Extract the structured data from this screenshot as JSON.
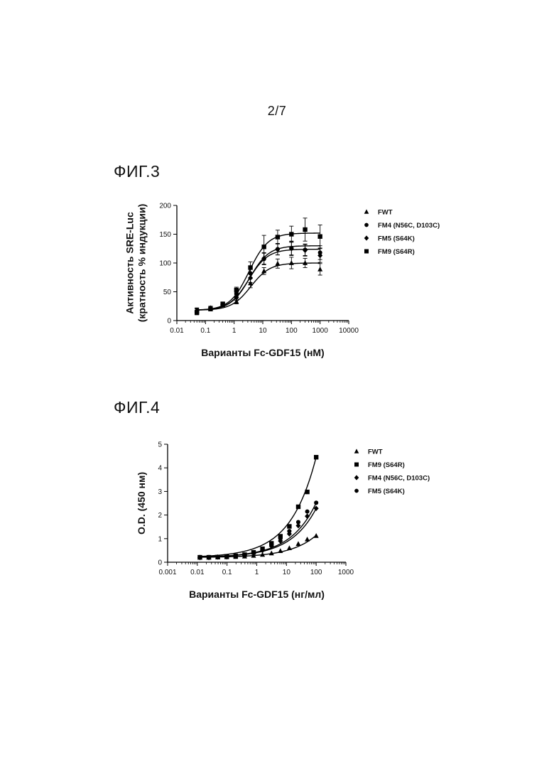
{
  "page": {
    "number": "2/7"
  },
  "figures": [
    {
      "title": "ФИГ.3"
    },
    {
      "title": "ФИГ.4"
    }
  ],
  "chart_data": [
    {
      "type": "scatter",
      "title": "",
      "xlabel": "Варианты Fc-GDF15 (нМ)",
      "ylabel_lines": [
        "Активность SRE-Luc",
        "(кратность % индукции)"
      ],
      "xscale": "log",
      "xlim": [
        0.01,
        10000
      ],
      "ylim": [
        0,
        200
      ],
      "xticks": [
        "0.01",
        "0.1",
        "1",
        "10",
        "100",
        "1000",
        "10000"
      ],
      "yticks": [
        "0",
        "50",
        "100",
        "150",
        "200"
      ],
      "legend_position": "right",
      "series": [
        {
          "name": "FWT",
          "marker": "triangle",
          "x": [
            0.05,
            0.15,
            0.4,
            1.2,
            3.7,
            11,
            33,
            100,
            300,
            1000
          ],
          "y": [
            18,
            22,
            27,
            33,
            65,
            86,
            99,
            100,
            100,
            89
          ],
          "err": [
            4,
            3,
            3,
            4,
            8,
            6,
            8,
            10,
            8,
            10
          ],
          "fit": {
            "bottom": 18,
            "top": 100,
            "ec50": 3.8,
            "hill": 1.3
          }
        },
        {
          "name": "FM4 (N56C, D103C)",
          "marker": "circle",
          "x": [
            0.05,
            0.15,
            0.4,
            1.2,
            3.7,
            11,
            33,
            100,
            300,
            1000
          ],
          "y": [
            16,
            20,
            27,
            47,
            82,
            107,
            124,
            125,
            123,
            118
          ],
          "err": [
            4,
            3,
            3,
            5,
            8,
            10,
            10,
            12,
            10,
            12
          ],
          "fit": {
            "bottom": 18,
            "top": 124,
            "ec50": 3.2,
            "hill": 1.3
          }
        },
        {
          "name": "FM5 (S64K)",
          "marker": "diamond",
          "x": [
            0.05,
            0.15,
            0.4,
            1.2,
            3.7,
            11,
            33,
            100,
            300,
            1000
          ],
          "y": [
            17,
            21,
            28,
            40,
            74,
            108,
            124,
            126,
            122,
            113
          ],
          "err": [
            4,
            3,
            3,
            5,
            8,
            10,
            10,
            12,
            10,
            12
          ],
          "fit": {
            "bottom": 18,
            "top": 130,
            "ec50": 3.5,
            "hill": 1.3
          }
        },
        {
          "name": "FM9 (S64R)",
          "marker": "square",
          "x": [
            0.05,
            0.15,
            0.4,
            1.2,
            3.7,
            11,
            33,
            100,
            300,
            1000
          ],
          "y": [
            14,
            20,
            29,
            53,
            92,
            128,
            145,
            150,
            158,
            146
          ],
          "err": [
            4,
            3,
            3,
            5,
            10,
            20,
            12,
            14,
            20,
            20
          ],
          "fit": {
            "bottom": 18,
            "top": 152,
            "ec50": 3.3,
            "hill": 1.3
          }
        }
      ]
    },
    {
      "type": "scatter",
      "title": "",
      "xlabel": "Варианты Fc-GDF15 (нг/мл)",
      "ylabel_lines": [
        "O.D. (450 нм)"
      ],
      "xscale": "log",
      "xlim": [
        0.001,
        1000
      ],
      "ylim": [
        0,
        5
      ],
      "xticks": [
        "0.001",
        "0.01",
        "0.1",
        "1",
        "10",
        "100",
        "1000"
      ],
      "yticks": [
        "0",
        "1",
        "2",
        "3",
        "4",
        "5"
      ],
      "legend_position": "right",
      "series": [
        {
          "name": "FWT",
          "marker": "triangle",
          "x": [
            0.0122,
            0.0244,
            0.0488,
            0.0977,
            0.195,
            0.39,
            0.78,
            1.56,
            3.13,
            6.25,
            12.5,
            25,
            50,
            100
          ],
          "y": [
            0.2,
            0.2,
            0.21,
            0.22,
            0.23,
            0.25,
            0.28,
            0.32,
            0.38,
            0.48,
            0.6,
            0.78,
            0.97,
            1.12
          ],
          "fit": {
            "a": 0.2,
            "b": 0.094
          }
        },
        {
          "name": "FM9 (S64R)",
          "marker": "square",
          "x": [
            0.0122,
            0.0244,
            0.0488,
            0.0977,
            0.195,
            0.39,
            0.78,
            1.56,
            3.13,
            6.25,
            12.5,
            25,
            50,
            100
          ],
          "y": [
            0.21,
            0.21,
            0.22,
            0.24,
            0.27,
            0.32,
            0.42,
            0.57,
            0.8,
            1.1,
            1.52,
            2.35,
            2.98,
            4.45
          ],
          "fit": {
            "a": 0.2,
            "b": 0.426
          }
        },
        {
          "name": "FM4 (N56C, D103C)",
          "marker": "diamond",
          "x": [
            0.0122,
            0.0244,
            0.0488,
            0.0977,
            0.195,
            0.39,
            0.78,
            1.56,
            3.13,
            6.25,
            12.5,
            25,
            50,
            100
          ],
          "y": [
            0.2,
            0.2,
            0.22,
            0.23,
            0.26,
            0.3,
            0.37,
            0.5,
            0.68,
            0.9,
            1.2,
            1.55,
            1.95,
            2.28
          ],
          "fit": {
            "a": 0.2,
            "b": 0.208
          }
        },
        {
          "name": "FM5 (S64K)",
          "marker": "circle",
          "x": [
            0.0122,
            0.0244,
            0.0488,
            0.0977,
            0.195,
            0.39,
            0.78,
            1.56,
            3.13,
            6.25,
            12.5,
            25,
            50,
            100
          ],
          "y": [
            0.2,
            0.21,
            0.22,
            0.24,
            0.27,
            0.32,
            0.4,
            0.55,
            0.75,
            1.0,
            1.32,
            1.7,
            2.15,
            2.52
          ],
          "fit": {
            "a": 0.2,
            "b": 0.232
          }
        }
      ]
    }
  ]
}
